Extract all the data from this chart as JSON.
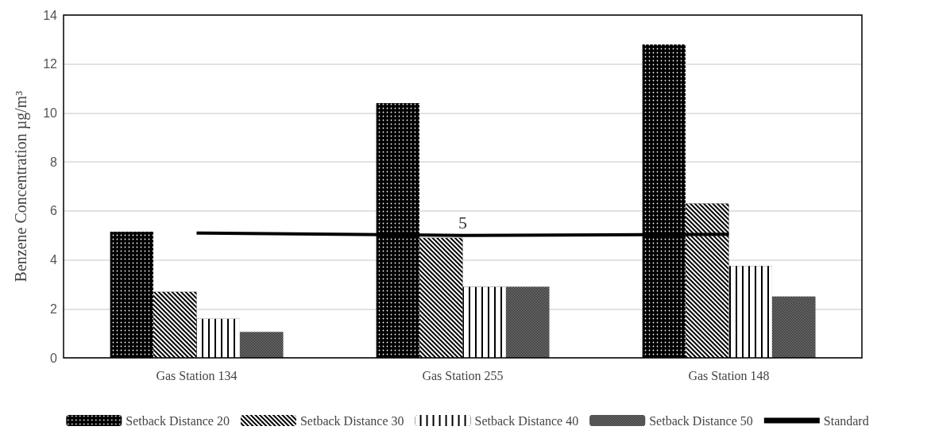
{
  "chart_data": {
    "type": "bar",
    "ylabel": "Benzene Concentration µg/m³",
    "categories": [
      "Gas Station 134",
      "Gas Station 255",
      "Gas Station 148"
    ],
    "series": [
      {
        "name": "Setback Distance 20",
        "color": "#000000",
        "values": [
          5.15,
          10.4,
          12.8
        ]
      },
      {
        "name": "Setback Distance 30",
        "color": "#000000",
        "values": [
          2.7,
          4.9,
          6.3
        ]
      },
      {
        "name": "Setback Distance 40",
        "color": "#000000",
        "values": [
          1.6,
          2.9,
          3.75
        ]
      },
      {
        "name": "Setback Distance 50",
        "color": "#000000",
        "values": [
          1.05,
          2.9,
          2.5
        ]
      },
      {
        "name": "Standard",
        "type": "line",
        "color": "#000000",
        "values": [
          5.1,
          5,
          5.05
        ],
        "value_labels": [
          null,
          "5",
          null
        ],
        "marker": "none"
      }
    ],
    "ylim": [
      0,
      14
    ],
    "yticks": [
      0,
      2,
      4,
      6,
      8,
      10,
      12,
      14
    ],
    "grid": "y",
    "legend": "bottom"
  }
}
